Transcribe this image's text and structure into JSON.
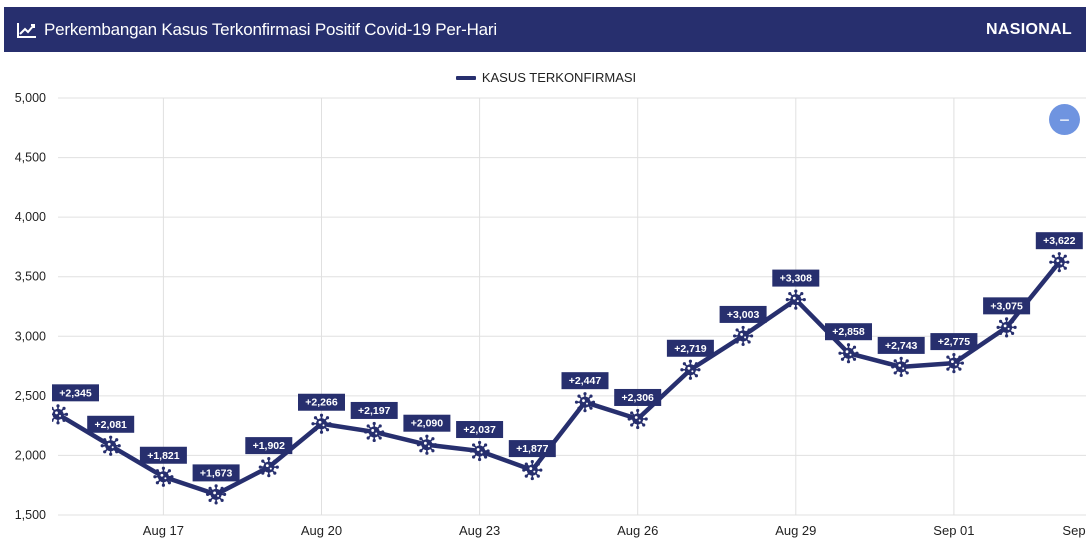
{
  "header": {
    "title": "Perkembangan Kasus Terkonfirmasi Positif Covid-19 Per-Hari",
    "scope": "NASIONAL",
    "icon": "line-chart-icon"
  },
  "legend": {
    "label": "KASUS TERKONFIRMASI"
  },
  "zoom_button": {
    "icon": "minus-icon",
    "symbol": "−"
  },
  "colors": {
    "primary": "#272f6e",
    "button": "#6f94e0",
    "grid": "#e0e0e0"
  },
  "chart_data": {
    "type": "line",
    "x": [
      "Aug 15",
      "Aug 16",
      "Aug 17",
      "Aug 18",
      "Aug 19",
      "Aug 20",
      "Aug 21",
      "Aug 22",
      "Aug 23",
      "Aug 24",
      "Aug 25",
      "Aug 26",
      "Aug 27",
      "Aug 28",
      "Aug 29",
      "Aug 30",
      "Aug 31",
      "Sep 01",
      "Sep 02",
      "Sep 03"
    ],
    "series": [
      {
        "name": "KASUS TERKONFIRMASI",
        "values": [
          2345,
          2081,
          1821,
          1673,
          1902,
          2266,
          2197,
          2090,
          2037,
          1877,
          2447,
          2306,
          2719,
          3003,
          3308,
          2858,
          2743,
          2775,
          3075,
          3622
        ],
        "labels": [
          "+2,345",
          "+2,081",
          "+1,821",
          "+1,673",
          "+1,902",
          "+2,266",
          "+2,197",
          "+2,090",
          "+2,037",
          "+1,877",
          "+2,447",
          "+2,306",
          "+2,719",
          "+3,003",
          "+3,308",
          "+2,858",
          "+2,743",
          "+2,775",
          "+3,075",
          "+3,622"
        ]
      }
    ],
    "x_tick_labels": [
      "Aug 17",
      "Aug 20",
      "Aug 23",
      "Aug 26",
      "Aug 29",
      "Sep 01",
      "Sep"
    ],
    "x_tick_indices": [
      2,
      5,
      8,
      11,
      14,
      17,
      20
    ],
    "y_ticks": [
      1500,
      2000,
      2500,
      3000,
      3500,
      4000,
      4500,
      5000
    ],
    "y_tick_labels": [
      "1,500",
      "2,000",
      "2,500",
      "3,000",
      "3,500",
      "4,000",
      "4,500",
      "5,000"
    ],
    "ylim": [
      1500,
      5000
    ],
    "xlabel": "",
    "ylabel": "",
    "grid": true,
    "legend_position": "top"
  }
}
